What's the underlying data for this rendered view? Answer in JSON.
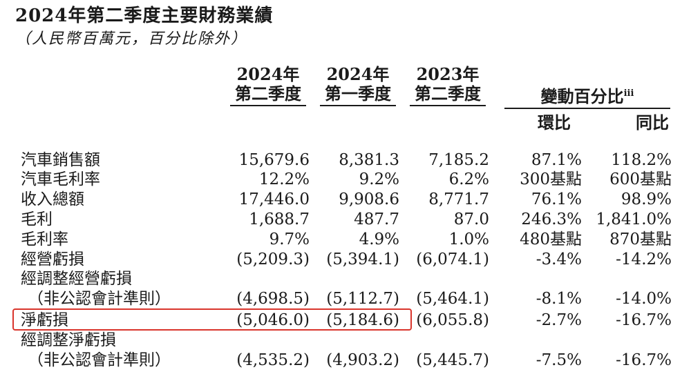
{
  "title": "2024年第二季度主要財務業績",
  "subtitle": "（人民幣百萬元，百分比除外）",
  "columns": {
    "c1": {
      "line1": "2024年",
      "line2": "第二季度"
    },
    "c2": {
      "line1": "2024年",
      "line2": "第一季度"
    },
    "c3": {
      "line1": "2023年",
      "line2": "第二季度"
    },
    "change": {
      "label": "變動百分比",
      "sup": "iii",
      "qoq": "環比",
      "yoy": "同比"
    }
  },
  "rows": [
    {
      "label": "汽車銷售額",
      "v1": "15,679.6",
      "v2": "8,381.3",
      "v3": "7,185.2",
      "qoq": "87.1%",
      "yoy": "118.2%"
    },
    {
      "label": "汽車毛利率",
      "v1": "12.2%",
      "v2": "9.2%",
      "v3": "6.2%",
      "qoq": "300基點",
      "yoy": "600基點"
    },
    {
      "label": "收入總額",
      "v1": "17,446.0",
      "v2": "9,908.6",
      "v3": "8,771.7",
      "qoq": "76.1%",
      "yoy": "98.9%"
    },
    {
      "label": "毛利",
      "v1": "1,688.7",
      "v2": "487.7",
      "v3": "87.0",
      "qoq": "246.3%",
      "yoy": "1,841.0%"
    },
    {
      "label": "毛利率",
      "v1": "9.7%",
      "v2": "4.9%",
      "v3": "1.0%",
      "qoq": "480基點",
      "yoy": "870基點"
    },
    {
      "label": "經營虧損",
      "v1": "(5,209.3)",
      "v2": "(5,394.1)",
      "v3": "(6,074.1)",
      "qoq": "-3.4%",
      "yoy": "-14.2%"
    },
    {
      "label": "經調整經營虧損",
      "v1": "",
      "v2": "",
      "v3": "",
      "qoq": "",
      "yoy": ""
    },
    {
      "label": "（非公認會計準則）",
      "v1": "(4,698.5)",
      "v2": "(5,112.7)",
      "v3": "(5,464.1)",
      "qoq": "-8.1%",
      "yoy": "-14.0%"
    },
    {
      "label": "淨虧損",
      "v1": "(5,046.0)",
      "v2": "(5,184.6)",
      "v3": "(6,055.8)",
      "qoq": "-2.7%",
      "yoy": "-16.7%"
    },
    {
      "label": "經調整淨虧損",
      "v1": "",
      "v2": "",
      "v3": "",
      "qoq": "",
      "yoy": ""
    },
    {
      "label": "（非公認會計準則）",
      "v1": "(4,535.2)",
      "v2": "(4,903.2)",
      "v3": "(5,445.7)",
      "qoq": "-7.5%",
      "yoy": "-16.7%"
    }
  ],
  "highlight_color": "#d9342b"
}
